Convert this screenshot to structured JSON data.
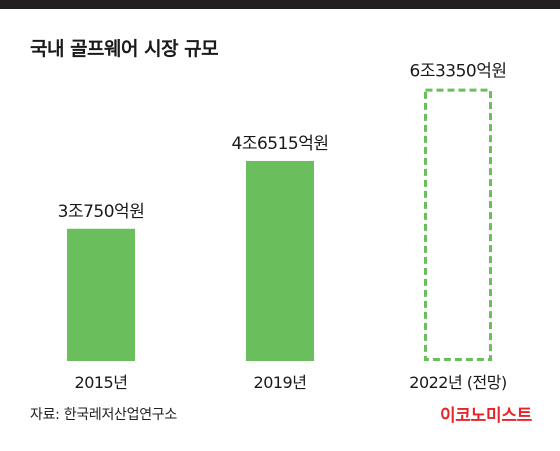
{
  "header": {
    "title": "국내 골프웨어 시장 규모",
    "bar_color": "#231f20"
  },
  "chart_data": {
    "type": "bar",
    "title": "국내 골프웨어 시장 규모",
    "categories": [
      "2015년",
      "2019년",
      "2022년 (전망)"
    ],
    "values": [
      30750,
      46515,
      63350
    ],
    "value_unit": "억원",
    "data_labels": [
      "3조750억원",
      "4조6515억원",
      "6조3350억원"
    ],
    "projected": [
      false,
      false,
      true
    ],
    "ylim": [
      0,
      70000
    ],
    "grid": false,
    "axis_visible": false,
    "bar_color": "#6abf5c",
    "projected_style": "dashed-outline"
  },
  "footer": {
    "source": "자료: 한국레저산업연구소",
    "brand": "이코노미스트",
    "brand_color": "#e8242a"
  }
}
